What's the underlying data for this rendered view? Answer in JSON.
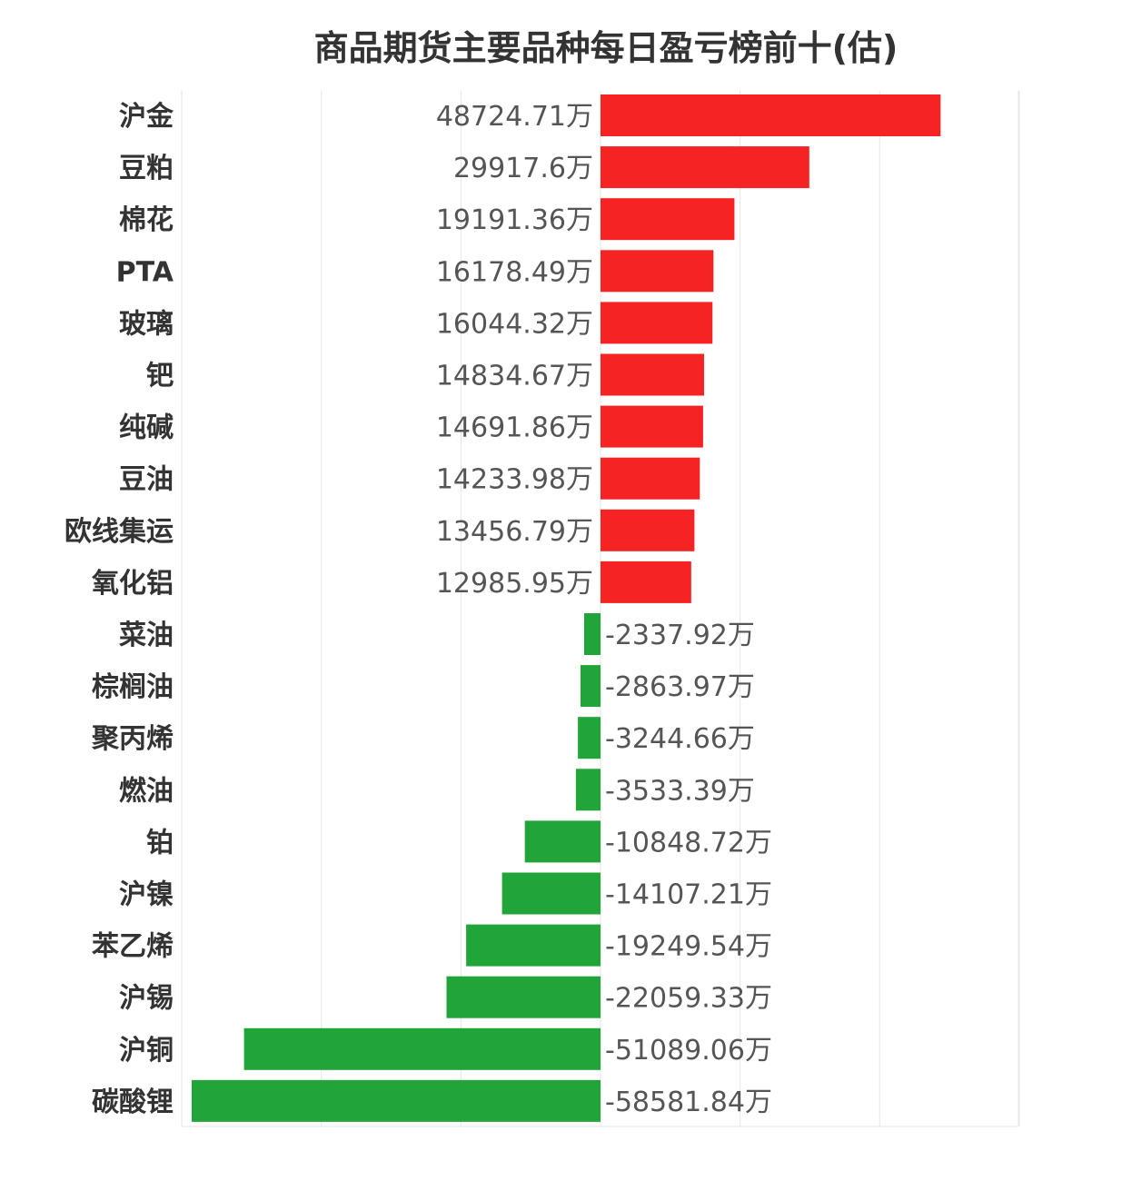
{
  "chart_data": {
    "type": "bar",
    "orientation": "horizontal",
    "title": "商品期货主要品种每日盈亏榜前十(估)",
    "unit_suffix": "万",
    "categories": [
      "沪金",
      "豆粕",
      "棉花",
      "PTA",
      "玻璃",
      "钯",
      "纯碱",
      "豆油",
      "欧线集运",
      "氧化铝",
      "菜油",
      "棕榈油",
      "聚丙烯",
      "燃油",
      "铂",
      "沪镍",
      "苯乙烯",
      "沪锡",
      "沪铜",
      "碳酸锂"
    ],
    "values": [
      48724.71,
      29917.6,
      19191.36,
      16178.49,
      16044.32,
      14834.67,
      14691.86,
      14233.98,
      13456.79,
      12985.95,
      -2337.92,
      -2863.97,
      -3244.66,
      -3533.39,
      -10848.72,
      -14107.21,
      -19249.54,
      -22059.33,
      -51089.06,
      -58581.84
    ],
    "value_labels": [
      "48724.71万",
      "29917.6万",
      "19191.36万",
      "16178.49万",
      "16044.32万",
      "14834.67万",
      "14691.86万",
      "14233.98万",
      "13456.79万",
      "12985.95万",
      "-2337.92万",
      "-2863.97万",
      "-3244.66万",
      "-3533.39万",
      "-10848.72万",
      "-14107.21万",
      "-19249.54万",
      "-22059.33万",
      "-51089.06万",
      "-58581.84万"
    ],
    "xlim": [
      -60000,
      60000
    ],
    "grid": true,
    "colors": {
      "positive": "#f52323",
      "negative": "#21a539",
      "label": "#333333",
      "value_text": "#555555",
      "grid": "#e6e6e6"
    }
  }
}
